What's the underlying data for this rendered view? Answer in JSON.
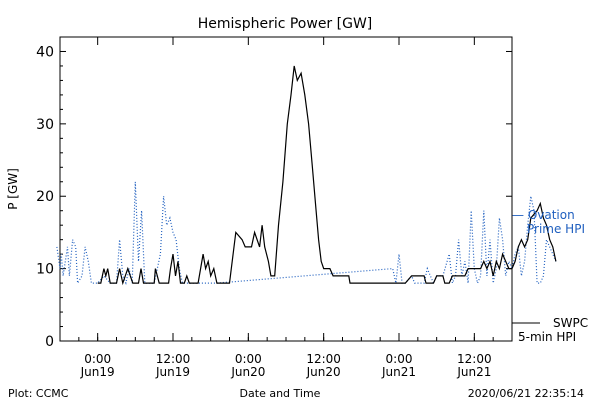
{
  "chart_data": {
    "type": "line",
    "title": "Hemispheric Power [GW]",
    "ylabel": "P [GW]",
    "xlabel": "Date and Time",
    "ylim": [
      0,
      42
    ],
    "yticks": [
      0,
      10,
      20,
      30,
      40
    ],
    "xlim_hours": [
      -6,
      66
    ],
    "xticks": [
      {
        "label_top": "0:00",
        "label_bottom": "Jun19",
        "hour": 0
      },
      {
        "label_top": "12:00",
        "label_bottom": "Jun19",
        "hour": 12
      },
      {
        "label_top": "0:00",
        "label_bottom": "Jun20",
        "hour": 24
      },
      {
        "label_top": "12:00",
        "label_bottom": "Jun20",
        "hour": 36
      },
      {
        "label_top": "0:00",
        "label_bottom": "Jun21",
        "hour": 48
      },
      {
        "label_top": "12:00",
        "label_bottom": "Jun21",
        "hour": 60
      }
    ],
    "series": [
      {
        "name": "SWPC 5-min HPI",
        "color": "#000000",
        "style": "solid",
        "points": [
          [
            0.0,
            8
          ],
          [
            0.5,
            8
          ],
          [
            1.0,
            10
          ],
          [
            1.3,
            9
          ],
          [
            1.6,
            10
          ],
          [
            2.0,
            8
          ],
          [
            3.0,
            8
          ],
          [
            3.5,
            10
          ],
          [
            4.0,
            8
          ],
          [
            4.8,
            10
          ],
          [
            5.2,
            9
          ],
          [
            5.6,
            8
          ],
          [
            6.5,
            8
          ],
          [
            6.9,
            10
          ],
          [
            7.3,
            8
          ],
          [
            9.0,
            8
          ],
          [
            9.2,
            10
          ],
          [
            9.5,
            9
          ],
          [
            9.8,
            8
          ],
          [
            10.5,
            8
          ],
          [
            11.3,
            8
          ],
          [
            11.6,
            10
          ],
          [
            12.0,
            12
          ],
          [
            12.4,
            9
          ],
          [
            12.8,
            11
          ],
          [
            13.2,
            8
          ],
          [
            13.8,
            8
          ],
          [
            14.2,
            9
          ],
          [
            14.6,
            8
          ],
          [
            16.0,
            8
          ],
          [
            16.4,
            10
          ],
          [
            16.8,
            12
          ],
          [
            17.2,
            10
          ],
          [
            17.6,
            11
          ],
          [
            18.0,
            9
          ],
          [
            18.5,
            10
          ],
          [
            19.0,
            8
          ],
          [
            20.0,
            8
          ],
          [
            21.0,
            8
          ],
          [
            22.0,
            15
          ],
          [
            23.0,
            14
          ],
          [
            23.5,
            13
          ],
          [
            24.5,
            13
          ],
          [
            25.0,
            15
          ],
          [
            25.8,
            13
          ],
          [
            26.2,
            16
          ],
          [
            26.6,
            13
          ],
          [
            27.2,
            11
          ],
          [
            27.6,
            9
          ],
          [
            28.2,
            9
          ],
          [
            28.8,
            16
          ],
          [
            29.5,
            22
          ],
          [
            30.2,
            30
          ],
          [
            30.8,
            34
          ],
          [
            31.3,
            38
          ],
          [
            31.8,
            36
          ],
          [
            32.4,
            37
          ],
          [
            33.0,
            34
          ],
          [
            33.6,
            30
          ],
          [
            34.2,
            24
          ],
          [
            34.8,
            18
          ],
          [
            35.2,
            14
          ],
          [
            35.6,
            11
          ],
          [
            36.0,
            10
          ],
          [
            37.0,
            10
          ],
          [
            37.5,
            9
          ],
          [
            40.0,
            9
          ],
          [
            40.2,
            8
          ],
          [
            48.0,
            8
          ],
          [
            49.0,
            8
          ],
          [
            50.0,
            9
          ],
          [
            52.0,
            9
          ],
          [
            52.3,
            8
          ],
          [
            53.5,
            8
          ],
          [
            54.0,
            9
          ],
          [
            55.0,
            9
          ],
          [
            55.3,
            8
          ],
          [
            56.0,
            8
          ],
          [
            56.5,
            9
          ],
          [
            58.0,
            9
          ],
          [
            58.5,
            9
          ],
          [
            59.0,
            10
          ],
          [
            59.5,
            10
          ],
          [
            61.0,
            10
          ],
          [
            61.5,
            11
          ],
          [
            62.0,
            10
          ],
          [
            62.5,
            11
          ],
          [
            63.0,
            9
          ],
          [
            63.5,
            11
          ],
          [
            64.0,
            10
          ],
          [
            64.5,
            12
          ],
          [
            65.0,
            11
          ],
          [
            65.5,
            10
          ],
          [
            66.0,
            10
          ],
          [
            66.5,
            11
          ],
          [
            67.0,
            13
          ],
          [
            67.5,
            14
          ],
          [
            68.0,
            13
          ],
          [
            68.5,
            14
          ],
          [
            69.0,
            17
          ],
          [
            70.0,
            18
          ],
          [
            70.5,
            19
          ],
          [
            71.0,
            17
          ],
          [
            71.5,
            16
          ],
          [
            72.0,
            14
          ],
          [
            72.5,
            13
          ],
          [
            73.0,
            11
          ]
        ]
      },
      {
        "name": "Ovation Prime HPI",
        "color": "#1f5fbf",
        "style": "dotted",
        "points": [
          [
            -6.5,
            13
          ],
          [
            -6.0,
            10
          ],
          [
            -5.8,
            12
          ],
          [
            -5.5,
            9
          ],
          [
            -4.8,
            13
          ],
          [
            -4.5,
            9
          ],
          [
            -4.0,
            14
          ],
          [
            -3.5,
            13
          ],
          [
            -3.2,
            8
          ],
          [
            -2.5,
            9
          ],
          [
            -2.0,
            13
          ],
          [
            -1.5,
            11
          ],
          [
            -1.0,
            8
          ],
          [
            0.0,
            8
          ],
          [
            1.0,
            9
          ],
          [
            2.0,
            8
          ],
          [
            3.0,
            8
          ],
          [
            3.5,
            14
          ],
          [
            4.0,
            9
          ],
          [
            4.5,
            8
          ],
          [
            5.0,
            10
          ],
          [
            5.5,
            8
          ],
          [
            6.0,
            22
          ],
          [
            6.5,
            11
          ],
          [
            7.0,
            18
          ],
          [
            7.5,
            8
          ],
          [
            8.0,
            8
          ],
          [
            9.0,
            8
          ],
          [
            10.0,
            12
          ],
          [
            10.5,
            20
          ],
          [
            11.0,
            16
          ],
          [
            11.5,
            17
          ],
          [
            12.0,
            15
          ],
          [
            12.5,
            14
          ],
          [
            13.0,
            10
          ],
          [
            13.5,
            8
          ],
          [
            14.0,
            8
          ],
          [
            15.0,
            8
          ],
          [
            16.0,
            8
          ],
          [
            17.0,
            8
          ],
          [
            18.0,
            8
          ],
          [
            19.0,
            8
          ],
          [
            47.0,
            10
          ],
          [
            47.5,
            8
          ],
          [
            48.0,
            12
          ],
          [
            48.5,
            8
          ],
          [
            49.0,
            8
          ],
          [
            50.0,
            9
          ],
          [
            50.5,
            8
          ],
          [
            51.0,
            8
          ],
          [
            52.0,
            8
          ],
          [
            52.5,
            10
          ],
          [
            53.0,
            9
          ],
          [
            53.5,
            8
          ],
          [
            54.0,
            9
          ],
          [
            55.0,
            9
          ],
          [
            56.0,
            12
          ],
          [
            56.5,
            8
          ],
          [
            57.0,
            9
          ],
          [
            57.5,
            14
          ],
          [
            58.0,
            9
          ],
          [
            58.5,
            11
          ],
          [
            59.0,
            8
          ],
          [
            59.5,
            18
          ],
          [
            60.0,
            10
          ],
          [
            60.5,
            8
          ],
          [
            61.0,
            9
          ],
          [
            61.5,
            18
          ],
          [
            62.0,
            9
          ],
          [
            62.5,
            14
          ],
          [
            63.0,
            8
          ],
          [
            63.5,
            10
          ],
          [
            64.0,
            17
          ],
          [
            64.5,
            14
          ],
          [
            65.0,
            9
          ],
          [
            65.5,
            11
          ],
          [
            66.0,
            10
          ],
          [
            66.5,
            12
          ],
          [
            67.0,
            13
          ],
          [
            67.5,
            9
          ],
          [
            68.0,
            11
          ],
          [
            68.5,
            16
          ],
          [
            69.0,
            20
          ],
          [
            69.5,
            18
          ],
          [
            70.0,
            8
          ],
          [
            70.5,
            8
          ],
          [
            71.0,
            9
          ],
          [
            71.5,
            14
          ],
          [
            72.0,
            13
          ],
          [
            72.5,
            12
          ],
          [
            73.0,
            11
          ]
        ]
      }
    ],
    "legend": {
      "placement": "right",
      "entries": [
        {
          "line": "— Ovation",
          "line2": "Prime HPI",
          "color": "#1f5fbf"
        },
        {
          "line": "SWPC",
          "line2": "5-min HPI",
          "color": "#000000"
        }
      ]
    },
    "footer": {
      "left": "Plot: CCMC",
      "center": "Date and Time",
      "right": "2020/06/21  22:35:14"
    }
  }
}
